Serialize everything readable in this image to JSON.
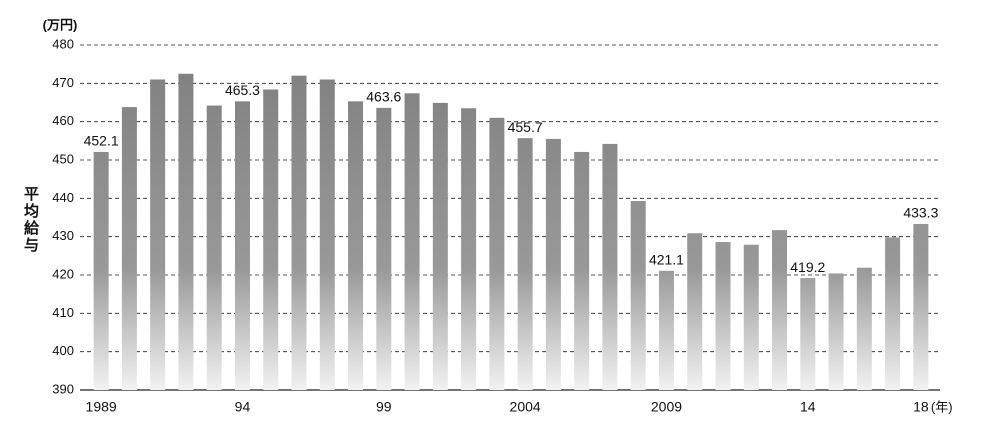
{
  "chart_data": {
    "type": "bar",
    "ylabel": "平均給与",
    "y_unit": "(万円)",
    "x_unit": "(年)",
    "categories": [
      "1989",
      null,
      null,
      null,
      null,
      "94",
      null,
      null,
      null,
      null,
      "99",
      null,
      null,
      null,
      null,
      "2004",
      null,
      null,
      null,
      null,
      "2009",
      null,
      null,
      null,
      null,
      "14",
      null,
      null,
      null,
      "18"
    ],
    "values": [
      452.1,
      463.8,
      471,
      472.5,
      464.2,
      465.3,
      468.4,
      472,
      471,
      465.3,
      463.6,
      467.4,
      464.9,
      463.5,
      461,
      455.7,
      455.5,
      452.1,
      454.2,
      439.3,
      421.1,
      430.9,
      428.6,
      427.9,
      431.7,
      419.2,
      420.4,
      421.9,
      429.8,
      433.3
    ],
    "value_labels": [
      "452.1",
      null,
      null,
      null,
      null,
      "465.3",
      null,
      null,
      null,
      null,
      "463.6",
      null,
      null,
      null,
      null,
      "455.7",
      null,
      null,
      null,
      null,
      "421.1",
      null,
      null,
      null,
      null,
      "419.2",
      null,
      null,
      null,
      "433.3"
    ],
    "color": "#858585",
    "ylim": [
      390,
      480
    ],
    "yticks": [
      390,
      400,
      410,
      420,
      430,
      440,
      450,
      460,
      470,
      480
    ],
    "grid": true
  }
}
